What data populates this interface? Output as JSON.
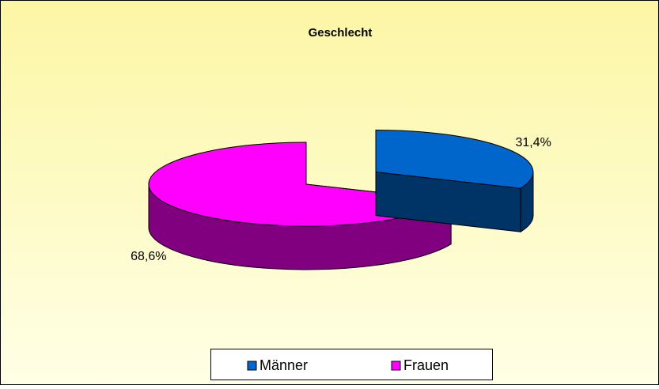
{
  "chart_data": {
    "type": "pie",
    "title": "Geschlecht",
    "categories": [
      "Männer",
      "Frauen"
    ],
    "values": [
      31.4,
      68.6
    ],
    "value_labels": [
      "31,4%",
      "68,6%"
    ],
    "colors": [
      "#0066cc",
      "#ff00ff"
    ],
    "explode": [
      0.53,
      0
    ],
    "legend": "bottom",
    "three_d": true
  }
}
